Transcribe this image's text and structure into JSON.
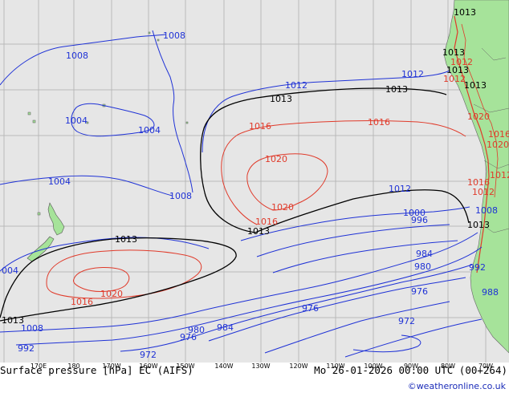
{
  "map": {
    "contour_labels": [
      {
        "text": "1008",
        "color": "blue"
      },
      {
        "text": "1008",
        "color": "blue"
      },
      {
        "text": "1004",
        "color": "blue"
      },
      {
        "text": "1004",
        "color": "blue"
      },
      {
        "text": "1008",
        "color": "blue"
      },
      {
        "text": "1004",
        "color": "blue"
      },
      {
        "text": "1012",
        "color": "blue"
      },
      {
        "text": "1012",
        "color": "blue"
      },
      {
        "text": "1013",
        "color": "black"
      },
      {
        "text": "1013",
        "color": "black"
      },
      {
        "text": "1013",
        "color": "black"
      },
      {
        "text": "1016",
        "color": "red"
      },
      {
        "text": "1016",
        "color": "red"
      },
      {
        "text": "1020",
        "color": "red"
      },
      {
        "text": "1020",
        "color": "red"
      },
      {
        "text": "1016",
        "color": "red"
      },
      {
        "text": "1013",
        "color": "black"
      },
      {
        "text": "1012",
        "color": "blue"
      },
      {
        "text": "1000",
        "color": "blue"
      },
      {
        "text": "996",
        "color": "blue"
      },
      {
        "text": "984",
        "color": "blue"
      },
      {
        "text": "980",
        "color": "blue"
      },
      {
        "text": "976",
        "color": "blue"
      },
      {
        "text": "976",
        "color": "blue"
      },
      {
        "text": "972",
        "color": "blue"
      },
      {
        "text": "1013",
        "color": "black"
      },
      {
        "text": "1020",
        "color": "red"
      },
      {
        "text": "1016",
        "color": "red"
      },
      {
        "text": "004",
        "color": "blue"
      },
      {
        "text": "1013",
        "color": "black"
      },
      {
        "text": "1008",
        "color": "blue"
      },
      {
        "text": "992",
        "color": "blue"
      },
      {
        "text": "972",
        "color": "blue"
      },
      {
        "text": "976",
        "color": "blue"
      },
      {
        "text": "980",
        "color": "blue"
      },
      {
        "text": "984",
        "color": "blue"
      },
      {
        "text": "1013",
        "color": "black"
      },
      {
        "text": "1012",
        "color": "red"
      },
      {
        "text": "1013",
        "color": "black"
      },
      {
        "text": "1020",
        "color": "red"
      },
      {
        "text": "1016",
        "color": "red"
      },
      {
        "text": "1020",
        "color": "red"
      },
      {
        "text": "1016",
        "color": "red"
      },
      {
        "text": "1012",
        "color": "red"
      },
      {
        "text": "1008",
        "color": "blue"
      },
      {
        "text": "1013",
        "color": "black"
      },
      {
        "text": "992",
        "color": "blue"
      },
      {
        "text": "988",
        "color": "blue"
      },
      {
        "text": "1012",
        "color": "red"
      },
      {
        "text": "1013",
        "color": "black"
      },
      {
        "text": "1012",
        "color": "red"
      }
    ],
    "longitude_labels": [
      "170E",
      "180",
      "170W",
      "160W",
      "150W",
      "140W",
      "130W",
      "120W",
      "110W",
      "100W",
      "90W",
      "80W",
      "70W"
    ]
  },
  "footer": {
    "title": "Surface pressure [hPa] EC (AIFS)",
    "valid_time": "Mo 26-01-2026 00:00 UTC (00+264)",
    "credit": "©weatheronline.co.uk"
  },
  "colors": {
    "ocean": "#e6e6e6",
    "land": "#a6e39a",
    "isobar_low": "#1f32d6",
    "isobar_high": "#e03a2a",
    "isobar_ref": "#000000",
    "grid": "#b9b9b9",
    "credit": "#1a2bb8"
  }
}
